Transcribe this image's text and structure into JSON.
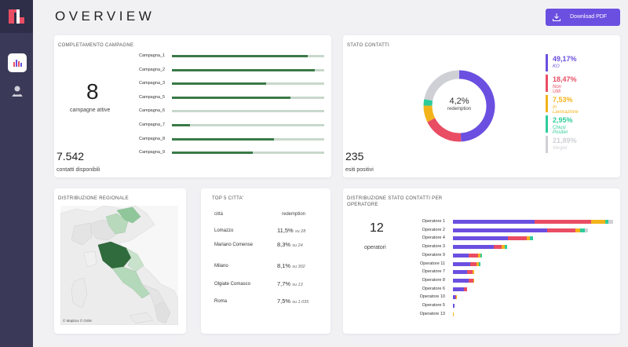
{
  "header": {
    "title": "OVERVIEW",
    "download_label": "Download PDF"
  },
  "campagne": {
    "title": "COMPLETAMENTO CAMPAGNE",
    "active_count": "8",
    "active_label": "campagne attive",
    "contacts_count": "7.542",
    "contacts_label": "contatti disponibili",
    "items": [
      {
        "label": "Campagna_1",
        "progress": 0.89
      },
      {
        "label": "Campagna_2",
        "progress": 0.94
      },
      {
        "label": "Campagna_3",
        "progress": 0.62
      },
      {
        "label": "Campagna_5",
        "progress": 0.78
      },
      {
        "label": "Campagna_6",
        "progress": 0.0
      },
      {
        "label": "Campagna_7",
        "progress": 0.12
      },
      {
        "label": "Campagna_8",
        "progress": 0.67
      },
      {
        "label": "Campagna_9",
        "progress": 0.53
      }
    ]
  },
  "stato": {
    "title": "STATO CONTATTI",
    "center_value": "4,2%",
    "center_label": "redemption",
    "positive_count": "235",
    "positive_label": "esiti positivi",
    "legend": [
      {
        "pct": "49,17%",
        "name": "KO",
        "color": "#6b4fe0",
        "value": 49.17
      },
      {
        "pct": "18,47%",
        "name": "Non Utili",
        "color": "#e94d64",
        "value": 18.47
      },
      {
        "pct": "7,53%",
        "name": "In Lavorazione",
        "color": "#f2b31b",
        "value": 7.53
      },
      {
        "pct": "2,95%",
        "name": "Chiusi Positivi",
        "color": "#2ecc9a",
        "value": 2.95
      },
      {
        "pct": "21,89%",
        "name": "Vergini",
        "color": "#cfd0d6",
        "value": 21.89
      }
    ]
  },
  "regionale": {
    "title": "DISTRIBUZIONE REGIONALE",
    "credit": "© Mapbox © OSM"
  },
  "citta": {
    "title": "TOP 5 CITTA'",
    "col_city": "città",
    "col_red": "redemption",
    "rows": [
      {
        "city": "Lomazzo",
        "value": "11,5%",
        "detail": "su 28"
      },
      {
        "city": "Mariano Comense",
        "value": "8,3%",
        "detail": "su 24"
      },
      {
        "city": "Milano",
        "value": "8,1%",
        "detail": "su 302"
      },
      {
        "city": "Olgiate Comasco",
        "value": "7,7%",
        "detail": "su 13"
      },
      {
        "city": "Roma",
        "value": "7,5%",
        "detail": "su 1.035"
      }
    ]
  },
  "operatori": {
    "title": "DISTRIBUZIONE STATO CONTATTI PER OPERATORE",
    "count": "12",
    "count_label": "operatori",
    "segment_colors": [
      "#6b4fe0",
      "#e94d64",
      "#f2b31b",
      "#2ecc9a",
      "#cfd0d6"
    ],
    "rows": [
      {
        "label": "Operatore 1",
        "segments": [
          104,
          72,
          18,
          4,
          6
        ]
      },
      {
        "label": "Operatore 2",
        "segments": [
          120,
          36,
          6,
          6,
          4
        ]
      },
      {
        "label": "Operatore 4",
        "segments": [
          70,
          24,
          4,
          4,
          0
        ]
      },
      {
        "label": "Operatore 3",
        "segments": [
          52,
          10,
          4,
          3,
          0
        ]
      },
      {
        "label": "Operatore 9",
        "segments": [
          20,
          12,
          3,
          2,
          0
        ]
      },
      {
        "label": "Operatore 11",
        "segments": [
          22,
          8,
          3,
          2,
          0
        ]
      },
      {
        "label": "Operatore 7",
        "segments": [
          18,
          7,
          2,
          0,
          0
        ]
      },
      {
        "label": "Operatore 8",
        "segments": [
          20,
          6,
          1,
          0,
          0
        ]
      },
      {
        "label": "Operatore 6",
        "segments": [
          14,
          4,
          0,
          0,
          0
        ]
      },
      {
        "label": "Operatore 10",
        "segments": [
          3,
          1,
          1,
          0,
          0
        ]
      },
      {
        "label": "Operatore 5",
        "segments": [
          2,
          0,
          0,
          0,
          0
        ]
      },
      {
        "label": "Operatore 13",
        "segments": [
          0,
          0,
          1,
          0,
          0
        ]
      }
    ]
  }
}
